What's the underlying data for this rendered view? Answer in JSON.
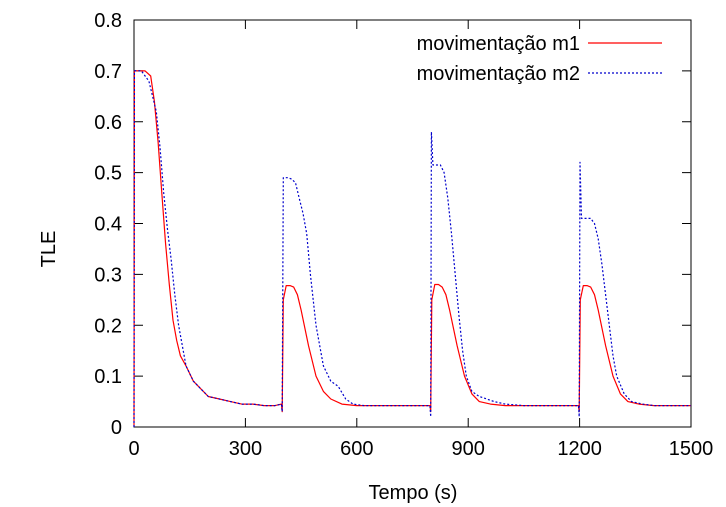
{
  "chart_data": {
    "type": "line",
    "title": "",
    "xlabel": "Tempo (s)",
    "ylabel": "TLE",
    "xlim": [
      0,
      1500
    ],
    "ylim": [
      0,
      0.8
    ],
    "xticks": [
      0,
      300,
      600,
      900,
      1200,
      1500
    ],
    "yticks": [
      0,
      0.1,
      0.2,
      0.3,
      0.4,
      0.5,
      0.6,
      0.7,
      0.8
    ],
    "grid": false,
    "legend_position": "top-right",
    "series": [
      {
        "name": "movimentação m1",
        "color": "#ff0000",
        "dash": "solid",
        "x": [
          0,
          1,
          10,
          30,
          45,
          55,
          65,
          75,
          85,
          95,
          105,
          115,
          125,
          140,
          160,
          180,
          200,
          230,
          260,
          290,
          320,
          350,
          380,
          397,
          399,
          402,
          410,
          420,
          430,
          440,
          450,
          470,
          490,
          510,
          530,
          560,
          600,
          650,
          700,
          750,
          797,
          799,
          802,
          810,
          820,
          830,
          840,
          850,
          870,
          890,
          910,
          930,
          960,
          1000,
          1050,
          1100,
          1150,
          1197,
          1199,
          1202,
          1210,
          1220,
          1230,
          1240,
          1250,
          1270,
          1290,
          1310,
          1330,
          1360,
          1400,
          1450,
          1500
        ],
        "y": [
          0,
          0.7,
          0.7,
          0.7,
          0.69,
          0.64,
          0.56,
          0.46,
          0.36,
          0.28,
          0.21,
          0.17,
          0.14,
          0.12,
          0.09,
          0.075,
          0.06,
          0.055,
          0.05,
          0.045,
          0.045,
          0.042,
          0.042,
          0.045,
          0.03,
          0.25,
          0.278,
          0.278,
          0.275,
          0.26,
          0.23,
          0.16,
          0.1,
          0.07,
          0.055,
          0.045,
          0.042,
          0.042,
          0.042,
          0.042,
          0.042,
          0.03,
          0.25,
          0.28,
          0.28,
          0.275,
          0.26,
          0.23,
          0.16,
          0.1,
          0.065,
          0.05,
          0.045,
          0.042,
          0.042,
          0.042,
          0.042,
          0.042,
          0.03,
          0.25,
          0.278,
          0.278,
          0.275,
          0.26,
          0.23,
          0.16,
          0.1,
          0.065,
          0.05,
          0.045,
          0.042,
          0.042,
          0.042
        ]
      },
      {
        "name": "movimentação m2",
        "color": "#0000cc",
        "dash": "dotted",
        "x": [
          0,
          1,
          20,
          40,
          50,
          60,
          70,
          80,
          90,
          100,
          110,
          120,
          130,
          140,
          160,
          180,
          200,
          230,
          260,
          290,
          320,
          350,
          380,
          397,
          399,
          402,
          415,
          425,
          435,
          445,
          455,
          465,
          475,
          490,
          510,
          530,
          550,
          570,
          590,
          620,
          650,
          700,
          750,
          797,
          799,
          801,
          805,
          825,
          835,
          845,
          855,
          865,
          875,
          885,
          895,
          910,
          930,
          950,
          970,
          1000,
          1050,
          1100,
          1150,
          1197,
          1199,
          1201,
          1205,
          1230,
          1240,
          1250,
          1260,
          1270,
          1280,
          1290,
          1300,
          1320,
          1340,
          1370,
          1400,
          1450,
          1500
        ],
        "y": [
          0,
          0.7,
          0.7,
          0.68,
          0.65,
          0.62,
          0.55,
          0.46,
          0.39,
          0.33,
          0.26,
          0.2,
          0.16,
          0.12,
          0.09,
          0.075,
          0.06,
          0.055,
          0.05,
          0.045,
          0.045,
          0.042,
          0.042,
          0.045,
          0.03,
          0.49,
          0.49,
          0.487,
          0.48,
          0.45,
          0.42,
          0.38,
          0.3,
          0.2,
          0.12,
          0.09,
          0.08,
          0.055,
          0.045,
          0.042,
          0.042,
          0.042,
          0.042,
          0.042,
          0.02,
          0.58,
          0.515,
          0.515,
          0.5,
          0.45,
          0.38,
          0.3,
          0.22,
          0.15,
          0.1,
          0.07,
          0.06,
          0.055,
          0.05,
          0.045,
          0.042,
          0.042,
          0.042,
          0.042,
          0.02,
          0.52,
          0.41,
          0.41,
          0.4,
          0.37,
          0.32,
          0.26,
          0.2,
          0.14,
          0.1,
          0.065,
          0.05,
          0.045,
          0.042,
          0.042,
          0.042
        ]
      }
    ]
  }
}
